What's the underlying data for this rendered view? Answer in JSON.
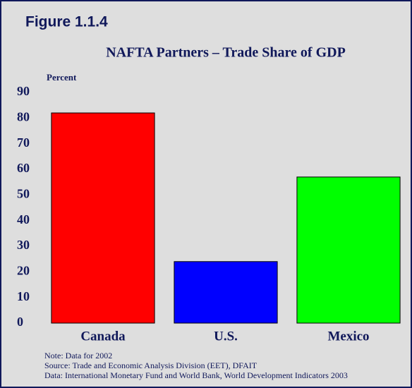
{
  "chart_data": {
    "type": "bar",
    "figure_label": "Figure 1.1.4",
    "title": "NAFTA Partners – Trade Share of GDP",
    "y_label": "Percent",
    "categories": [
      "Canada",
      "U.S.",
      "Mexico"
    ],
    "values": [
      82,
      24,
      57
    ],
    "colors": [
      "#ff0000",
      "#0000ff",
      "#00ff00"
    ],
    "ylim": [
      0,
      90
    ],
    "yticks": [
      0,
      10,
      20,
      30,
      40,
      50,
      60,
      70,
      80,
      90
    ],
    "grid": false,
    "notes": [
      "Note: Data for 2002",
      "Source: Trade and Economic Analysis Division (EET), DFAIT",
      "Data: International Monetary Fund and World Bank, World Development Indicators 2003"
    ]
  }
}
